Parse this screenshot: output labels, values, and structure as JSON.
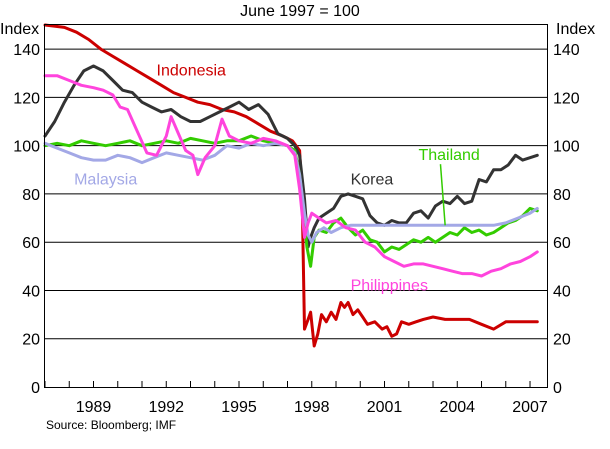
{
  "chart_data": {
    "type": "line",
    "title": "June 1997 = 100",
    "ylabel_left": "Index",
    "ylabel_right": "Index",
    "ylim": [
      0,
      150
    ],
    "yticks": [
      0,
      20,
      40,
      60,
      80,
      100,
      120,
      140
    ],
    "xlim": [
      1987.0,
      2007.7
    ],
    "xticks": [
      1989,
      1992,
      1995,
      1998,
      2001,
      2004,
      2007
    ],
    "grid": true,
    "source": "Source: Bloomberg; IMF",
    "series": [
      {
        "name": "Indonesia",
        "color": "#cc0000",
        "label_at": [
          1991.6,
          129
        ],
        "x": [
          1987.0,
          1987.8,
          1988.3,
          1988.8,
          1989.3,
          1989.8,
          1990.3,
          1990.8,
          1991.3,
          1991.8,
          1992.3,
          1992.8,
          1993.3,
          1993.8,
          1994.3,
          1994.8,
          1995.3,
          1995.8,
          1996.3,
          1996.8,
          1997.0,
          1997.2,
          1997.35,
          1997.5,
          1997.6,
          1997.7,
          1997.85,
          1997.95,
          1998.1,
          1998.25,
          1998.4,
          1998.6,
          1998.8,
          1999.0,
          1999.2,
          1999.35,
          1999.5,
          1999.7,
          1999.9,
          2000.1,
          2000.3,
          2000.6,
          2000.9,
          2001.1,
          2001.3,
          2001.5,
          2001.7,
          2002.0,
          2002.3,
          2002.6,
          2003.0,
          2003.5,
          2004.0,
          2004.5,
          2005.0,
          2005.5,
          2006.0,
          2006.5,
          2007.0,
          2007.3
        ],
        "values": [
          150,
          149,
          147,
          144,
          140,
          137,
          134,
          131,
          128,
          125,
          122,
          120,
          118,
          117,
          115,
          114,
          112,
          109,
          106,
          104,
          103,
          102,
          100,
          98,
          80,
          24,
          28,
          31,
          17,
          22,
          30,
          27,
          31,
          28,
          35,
          33,
          35,
          30,
          32,
          29,
          26,
          27,
          24,
          25,
          21,
          22,
          27,
          26,
          27,
          28,
          29,
          28,
          28,
          28,
          26,
          24,
          27,
          27,
          27,
          27
        ]
      },
      {
        "name": "Korea",
        "color": "#333333",
        "label_at": [
          1999.6,
          84
        ],
        "x": [
          1987.0,
          1987.4,
          1987.8,
          1988.2,
          1988.6,
          1989.0,
          1989.4,
          1989.8,
          1990.2,
          1990.6,
          1991.0,
          1991.4,
          1991.8,
          1992.2,
          1992.6,
          1993.0,
          1993.4,
          1993.8,
          1994.2,
          1994.6,
          1995.0,
          1995.4,
          1995.8,
          1996.2,
          1996.6,
          1997.0,
          1997.3,
          1997.5,
          1997.7,
          1997.85,
          1997.95,
          1998.1,
          1998.3,
          1998.6,
          1998.9,
          1999.2,
          1999.5,
          1999.8,
          2000.1,
          2000.4,
          2000.7,
          2001.0,
          2001.3,
          2001.6,
          2001.9,
          2002.2,
          2002.5,
          2002.8,
          2003.1,
          2003.4,
          2003.7,
          2004.0,
          2004.3,
          2004.6,
          2004.9,
          2005.2,
          2005.5,
          2005.8,
          2006.1,
          2006.4,
          2006.7,
          2007.0,
          2007.3
        ],
        "values": [
          104,
          110,
          118,
          125,
          131,
          133,
          131,
          127,
          123,
          122,
          118,
          116,
          114,
          115,
          112,
          110,
          110,
          112,
          114,
          116,
          118,
          115,
          117,
          113,
          105,
          103,
          100,
          96,
          78,
          58,
          62,
          66,
          70,
          72,
          74,
          79,
          80,
          79,
          78,
          71,
          68,
          67,
          69,
          68,
          68,
          72,
          73,
          70,
          75,
          77,
          76,
          79,
          76,
          77,
          86,
          85,
          90,
          90,
          92,
          96,
          94,
          95,
          96
        ]
      },
      {
        "name": "Thailand",
        "color": "#33cc00",
        "label_at": [
          2002.4,
          94
        ],
        "label_pointer": [
          2003.5,
          67
        ],
        "x": [
          1987.0,
          1987.5,
          1988.0,
          1988.5,
          1989.0,
          1989.5,
          1990.0,
          1990.5,
          1991.0,
          1991.5,
          1992.0,
          1992.5,
          1993.0,
          1993.5,
          1994.0,
          1994.5,
          1995.0,
          1995.5,
          1996.0,
          1996.5,
          1997.0,
          1997.3,
          1997.5,
          1997.65,
          1997.8,
          1997.95,
          1998.1,
          1998.3,
          1998.6,
          1998.9,
          1999.2,
          1999.5,
          1999.8,
          2000.1,
          2000.4,
          2000.7,
          2001.0,
          2001.3,
          2001.6,
          2001.9,
          2002.2,
          2002.5,
          2002.8,
          2003.1,
          2003.4,
          2003.7,
          2004.0,
          2004.3,
          2004.6,
          2004.9,
          2005.2,
          2005.5,
          2005.8,
          2006.1,
          2006.4,
          2006.7,
          2007.0,
          2007.3
        ],
        "values": [
          100,
          101,
          100,
          102,
          101,
          100,
          101,
          102,
          100,
          101,
          102,
          101,
          103,
          102,
          101,
          102,
          102,
          104,
          102,
          101,
          100,
          98,
          88,
          75,
          58,
          50,
          62,
          65,
          64,
          68,
          70,
          66,
          63,
          65,
          61,
          60,
          56,
          58,
          57,
          59,
          61,
          60,
          62,
          60,
          62,
          64,
          63,
          66,
          64,
          65,
          63,
          64,
          66,
          68,
          69,
          71,
          74,
          73
        ]
      },
      {
        "name": "Malaysia",
        "color": "#a3a8e6",
        "label_at": [
          1988.2,
          84
        ],
        "x": [
          1987.0,
          1987.5,
          1988.0,
          1988.5,
          1989.0,
          1989.5,
          1990.0,
          1990.5,
          1991.0,
          1991.5,
          1992.0,
          1992.5,
          1993.0,
          1993.5,
          1994.0,
          1994.5,
          1995.0,
          1995.5,
          1996.0,
          1996.5,
          1997.0,
          1997.3,
          1997.5,
          1997.7,
          1997.85,
          1998.0,
          1998.2,
          1998.5,
          1998.8,
          1999.2,
          1999.6,
          2000.0,
          2001.0,
          2002.0,
          2003.0,
          2004.0,
          2005.0,
          2005.5,
          2006.0,
          2006.5,
          2007.0,
          2007.3
        ],
        "values": [
          101,
          99,
          97,
          95,
          94,
          94,
          96,
          95,
          93,
          95,
          97,
          96,
          95,
          94,
          96,
          100,
          99,
          101,
          100,
          101,
          100,
          97,
          88,
          72,
          63,
          60,
          64,
          66,
          64,
          66,
          67,
          67,
          67,
          67,
          67,
          67,
          67,
          67,
          68,
          70,
          72,
          74
        ]
      },
      {
        "name": "Philippines",
        "color": "#ff44dd",
        "label_at": [
          1999.6,
          40
        ],
        "x": [
          1987.0,
          1987.5,
          1988.0,
          1988.5,
          1989.0,
          1989.4,
          1989.8,
          1990.1,
          1990.4,
          1990.8,
          1991.2,
          1991.6,
          1992.0,
          1992.2,
          1992.5,
          1992.8,
          1993.1,
          1993.3,
          1993.6,
          1994.0,
          1994.3,
          1994.6,
          1995.0,
          1995.5,
          1996.0,
          1996.5,
          1997.0,
          1997.3,
          1997.5,
          1997.7,
          1997.85,
          1998.0,
          1998.3,
          1998.6,
          1999.0,
          1999.4,
          1999.8,
          2000.2,
          2000.6,
          2001.0,
          2001.4,
          2001.8,
          2002.2,
          2002.6,
          2003.0,
          2003.4,
          2003.8,
          2004.2,
          2004.6,
          2005.0,
          2005.4,
          2005.8,
          2006.2,
          2006.6,
          2007.0,
          2007.3
        ],
        "values": [
          129,
          129,
          127,
          125,
          124,
          123,
          121,
          116,
          115,
          106,
          97,
          96,
          104,
          112,
          105,
          98,
          96,
          88,
          95,
          100,
          111,
          104,
          102,
          101,
          103,
          102,
          100,
          96,
          82,
          62,
          68,
          72,
          70,
          68,
          69,
          66,
          65,
          60,
          58,
          54,
          52,
          50,
          51,
          51,
          50,
          49,
          48,
          47,
          47,
          46,
          48,
          49,
          51,
          52,
          54,
          56
        ]
      }
    ]
  }
}
